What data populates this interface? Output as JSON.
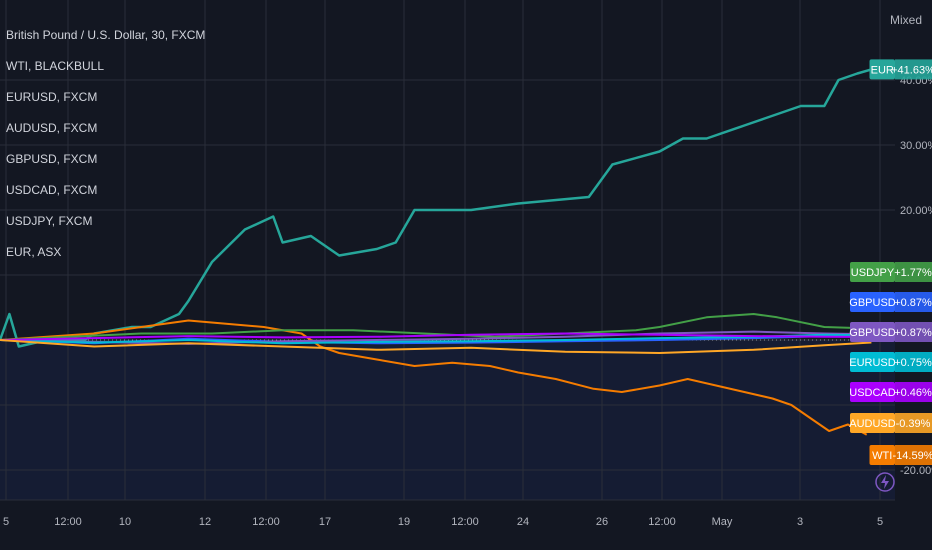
{
  "scale_mode": "Mixed",
  "legend_items": [
    "British Pound / U.S. Dollar, 30, FXCM",
    "WTI, BLACKBULL",
    "EURUSD, FXCM",
    "AUDUSD, FXCM",
    "GBPUSD, FXCM",
    "USDCAD, FXCM",
    "USDJPY, FXCM",
    "EUR, ASX"
  ],
  "colors": {
    "background": "#131722",
    "grid": "#2a2e39",
    "axis_text": "#b2b5be",
    "lower_fill": "#172040"
  },
  "chart_data": {
    "type": "line",
    "y_unit": "%",
    "y_ticks": [
      "40.00%",
      "30.00%",
      "20.00%",
      "-20.00%"
    ],
    "x_ticks": [
      "5",
      "12:00",
      "10",
      "12",
      "12:00",
      "17",
      "19",
      "12:00",
      "24",
      "26",
      "12:00",
      "May",
      "3",
      "5"
    ],
    "series": [
      {
        "name": "EUR",
        "color": "#26a69a",
        "label": "EUR",
        "value_label": "+41.63%",
        "points": [
          [
            0,
            0
          ],
          [
            2,
            4
          ],
          [
            4,
            -1
          ],
          [
            10,
            0
          ],
          [
            18,
            0
          ],
          [
            20,
            1
          ],
          [
            28,
            2
          ],
          [
            32,
            2
          ],
          [
            38,
            4
          ],
          [
            40,
            6
          ],
          [
            45,
            12
          ],
          [
            52,
            17
          ],
          [
            58,
            19
          ],
          [
            60,
            15
          ],
          [
            66,
            16
          ],
          [
            68,
            15
          ],
          [
            72,
            13
          ],
          [
            80,
            14
          ],
          [
            84,
            15
          ],
          [
            88,
            20
          ],
          [
            96,
            20
          ],
          [
            100,
            20
          ],
          [
            110,
            21
          ],
          [
            125,
            22
          ],
          [
            130,
            27
          ],
          [
            140,
            29
          ],
          [
            145,
            31
          ],
          [
            150,
            31
          ],
          [
            158,
            33
          ],
          [
            162,
            34
          ],
          [
            170,
            36
          ],
          [
            175,
            36
          ],
          [
            178,
            40
          ],
          [
            182,
            41
          ],
          [
            185,
            41.63
          ]
        ]
      },
      {
        "name": "WTI",
        "color": "#f57c00",
        "label": "WTI",
        "value_label": "-14.59%",
        "points": [
          [
            0,
            0
          ],
          [
            10,
            0.5
          ],
          [
            20,
            1
          ],
          [
            30,
            2
          ],
          [
            40,
            3
          ],
          [
            48,
            2.5
          ],
          [
            56,
            2
          ],
          [
            64,
            1
          ],
          [
            68,
            -1
          ],
          [
            72,
            -2
          ],
          [
            80,
            -3
          ],
          [
            88,
            -4
          ],
          [
            96,
            -3.5
          ],
          [
            104,
            -4
          ],
          [
            110,
            -5
          ],
          [
            118,
            -6
          ],
          [
            126,
            -7.5
          ],
          [
            132,
            -8
          ],
          [
            140,
            -7
          ],
          [
            146,
            -6
          ],
          [
            152,
            -7
          ],
          [
            158,
            -8
          ],
          [
            164,
            -9
          ],
          [
            168,
            -10
          ],
          [
            172,
            -12
          ],
          [
            176,
            -14
          ],
          [
            180,
            -13
          ],
          [
            184,
            -14.59
          ]
        ]
      },
      {
        "name": "USDJPY",
        "color": "#43a047",
        "label": "USDJPY",
        "value_label": "+1.77%",
        "points": [
          [
            0,
            0
          ],
          [
            15,
            0.5
          ],
          [
            30,
            1
          ],
          [
            45,
            1
          ],
          [
            60,
            1.5
          ],
          [
            75,
            1.5
          ],
          [
            90,
            1
          ],
          [
            105,
            0.5
          ],
          [
            120,
            1
          ],
          [
            135,
            1.5
          ],
          [
            140,
            2
          ],
          [
            150,
            3.5
          ],
          [
            160,
            4
          ],
          [
            165,
            3.5
          ],
          [
            175,
            2
          ],
          [
            185,
            1.77
          ]
        ]
      },
      {
        "name": "GBPUSD",
        "color": "#2962ff",
        "label": "GBPUSD",
        "value_label": "+0.87%",
        "points": [
          [
            0,
            0
          ],
          [
            20,
            -0.5
          ],
          [
            40,
            0.2
          ],
          [
            60,
            -0.3
          ],
          [
            80,
            -0.5
          ],
          [
            100,
            -0.4
          ],
          [
            120,
            -0.2
          ],
          [
            140,
            0
          ],
          [
            160,
            0.3
          ],
          [
            175,
            0.6
          ],
          [
            185,
            0.87
          ]
        ]
      },
      {
        "name": "GBPUSD",
        "color": "#7e57c2",
        "label": "GBPUSD",
        "value_label": "+0.87%",
        "points": [
          [
            0,
            0
          ],
          [
            20,
            -0.3
          ],
          [
            40,
            -0.6
          ],
          [
            60,
            -0.2
          ],
          [
            80,
            0
          ],
          [
            100,
            0.2
          ],
          [
            120,
            0.5
          ],
          [
            140,
            1
          ],
          [
            160,
            1.3
          ],
          [
            175,
            1
          ],
          [
            185,
            0.87
          ]
        ]
      },
      {
        "name": "EURUSD",
        "color": "#00bcd4",
        "label": "EURUSD",
        "value_label": "+0.75%",
        "points": [
          [
            0,
            0
          ],
          [
            20,
            -0.4
          ],
          [
            40,
            0
          ],
          [
            60,
            -0.5
          ],
          [
            80,
            -0.3
          ],
          [
            100,
            -0.2
          ],
          [
            120,
            0
          ],
          [
            140,
            0.3
          ],
          [
            160,
            0.5
          ],
          [
            175,
            0.8
          ],
          [
            185,
            0.75
          ]
        ]
      },
      {
        "name": "USDCAD",
        "color": "#aa00ff",
        "label": "USDCAD",
        "value_label": "+0.46%",
        "points": [
          [
            0,
            0
          ],
          [
            20,
            0.3
          ],
          [
            40,
            0.6
          ],
          [
            60,
            0.4
          ],
          [
            80,
            0.5
          ],
          [
            100,
            0.8
          ],
          [
            120,
            1
          ],
          [
            140,
            0.8
          ],
          [
            160,
            0.6
          ],
          [
            175,
            0.5
          ],
          [
            185,
            0.46
          ]
        ]
      },
      {
        "name": "AUDUSD",
        "color": "#ffa726",
        "label": "AUDUSD",
        "value_label": "-0.39%",
        "points": [
          [
            0,
            0
          ],
          [
            20,
            -1
          ],
          [
            40,
            -0.5
          ],
          [
            60,
            -1
          ],
          [
            80,
            -1.5
          ],
          [
            100,
            -1.2
          ],
          [
            120,
            -1.8
          ],
          [
            140,
            -2
          ],
          [
            160,
            -1.5
          ],
          [
            175,
            -0.8
          ],
          [
            185,
            -0.39
          ]
        ]
      }
    ]
  }
}
